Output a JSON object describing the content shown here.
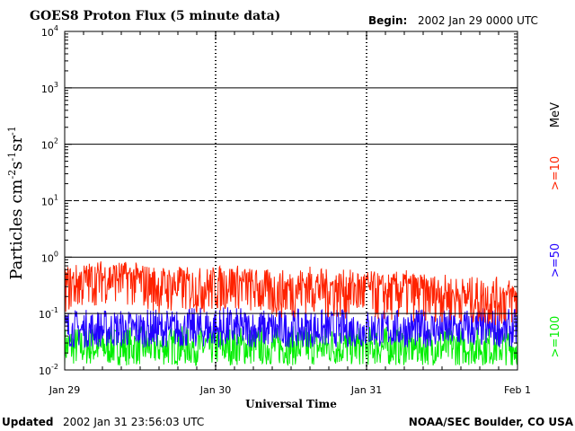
{
  "header": {
    "title": "GOES8 Proton Flux (5 minute data)",
    "begin_label": "Begin:",
    "begin_value": "2002 Jan 29 0000 UTC"
  },
  "footer": {
    "updated_label": "Updated",
    "updated_value": "2002 Jan 31 23:56:03 UTC",
    "credit": "NOAA/SEC Boulder, CO USA"
  },
  "legend": {
    "unit": "MeV",
    "items": [
      {
        "label": ">=10",
        "color": "#ff2200"
      },
      {
        "label": ">=50",
        "color": "#2200ff"
      },
      {
        "label": ">=100",
        "color": "#00ee00"
      }
    ]
  },
  "chart_data": {
    "type": "line",
    "title": "GOES8 Proton Flux (5 minute data)",
    "xlabel": "Universal Time",
    "ylabel": "Particles cm-2s-1sr-1",
    "yscale": "log",
    "ylim": [
      0.01,
      10000
    ],
    "y_tick_values": [
      0.01,
      0.1,
      1,
      10,
      100,
      1000,
      10000
    ],
    "y_tick_labels": [
      {
        "base": "10",
        "exp": "-2"
      },
      {
        "base": "10",
        "exp": "-1"
      },
      {
        "base": "10",
        "exp": "0"
      },
      {
        "base": "10",
        "exp": "1"
      },
      {
        "base": "10",
        "exp": "2"
      },
      {
        "base": "10",
        "exp": "3"
      },
      {
        "base": "10",
        "exp": "4"
      }
    ],
    "x_tick_labels": [
      "Jan 29",
      "Jan 30",
      "Jan 31",
      "Feb 1"
    ],
    "x_domain": [
      "2002-01-29",
      "2002-02-01"
    ],
    "dashed_reference_level": 10,
    "series": [
      {
        "name": ">=10 MeV",
        "color": "#ff2200",
        "x": [
          "2002-01-29T00:00",
          "2002-01-29T03:00",
          "2002-01-29T06:00",
          "2002-01-29T09:00",
          "2002-01-29T12:00",
          "2002-01-29T15:00",
          "2002-01-29T18:00",
          "2002-01-29T21:00",
          "2002-01-30T00:00",
          "2002-01-30T03:00",
          "2002-01-30T06:00",
          "2002-01-30T09:00",
          "2002-01-30T12:00",
          "2002-01-30T15:00",
          "2002-01-30T18:00",
          "2002-01-30T21:00",
          "2002-01-31T00:00",
          "2002-01-31T03:00",
          "2002-01-31T06:00",
          "2002-01-31T09:00",
          "2002-01-31T12:00",
          "2002-01-31T15:00",
          "2002-01-31T18:00",
          "2002-01-31T21:00",
          "2002-01-31T24:00"
        ],
        "y": [
          0.35,
          0.4,
          0.45,
          0.5,
          0.4,
          0.3,
          0.35,
          0.3,
          0.35,
          0.4,
          0.3,
          0.25,
          0.3,
          0.35,
          0.3,
          0.3,
          0.3,
          0.25,
          0.3,
          0.25,
          0.25,
          0.2,
          0.2,
          0.2,
          0.2
        ],
        "band_min": [
          0.1,
          0.12,
          0.15,
          0.15,
          0.12,
          0.1,
          0.1,
          0.1,
          0.1,
          0.12,
          0.1,
          0.08,
          0.08,
          0.1,
          0.08,
          0.08,
          0.08,
          0.07,
          0.07,
          0.07,
          0.07,
          0.07,
          0.06,
          0.06,
          0.06
        ],
        "band_max": [
          0.7,
          0.8,
          0.9,
          0.85,
          0.8,
          0.7,
          0.7,
          0.65,
          0.7,
          0.75,
          0.65,
          0.6,
          0.6,
          0.7,
          0.6,
          0.6,
          0.6,
          0.5,
          0.6,
          0.5,
          0.5,
          0.45,
          0.45,
          0.45,
          0.4
        ]
      },
      {
        "name": ">=50 MeV",
        "color": "#2200ff",
        "x": [
          "2002-01-29T00:00",
          "2002-01-29T06:00",
          "2002-01-29T12:00",
          "2002-01-29T18:00",
          "2002-01-30T00:00",
          "2002-01-30T06:00",
          "2002-01-30T12:00",
          "2002-01-30T18:00",
          "2002-01-31T00:00",
          "2002-01-31T06:00",
          "2002-01-31T12:00",
          "2002-01-31T18:00",
          "2002-01-31T24:00"
        ],
        "y": [
          0.05,
          0.05,
          0.05,
          0.05,
          0.05,
          0.05,
          0.05,
          0.05,
          0.05,
          0.05,
          0.05,
          0.05,
          0.05
        ],
        "band_min": [
          0.025,
          0.025,
          0.025,
          0.025,
          0.025,
          0.025,
          0.025,
          0.025,
          0.025,
          0.025,
          0.025,
          0.025,
          0.025
        ],
        "band_max": [
          0.12,
          0.12,
          0.12,
          0.12,
          0.14,
          0.12,
          0.12,
          0.12,
          0.12,
          0.12,
          0.12,
          0.13,
          0.12
        ]
      },
      {
        "name": ">=100 MeV",
        "color": "#00ee00",
        "x": [
          "2002-01-29T00:00",
          "2002-01-29T06:00",
          "2002-01-29T12:00",
          "2002-01-29T18:00",
          "2002-01-30T00:00",
          "2002-01-30T06:00",
          "2002-01-30T12:00",
          "2002-01-30T18:00",
          "2002-01-31T00:00",
          "2002-01-31T06:00",
          "2002-01-31T12:00",
          "2002-01-31T18:00",
          "2002-01-31T24:00"
        ],
        "y": [
          0.025,
          0.025,
          0.025,
          0.025,
          0.025,
          0.025,
          0.025,
          0.025,
          0.025,
          0.025,
          0.025,
          0.025,
          0.025
        ],
        "band_min": [
          0.012,
          0.012,
          0.012,
          0.012,
          0.012,
          0.012,
          0.012,
          0.012,
          0.012,
          0.012,
          0.012,
          0.012,
          0.012
        ],
        "band_max": [
          0.06,
          0.06,
          0.06,
          0.06,
          0.06,
          0.06,
          0.06,
          0.06,
          0.06,
          0.06,
          0.06,
          0.06,
          0.06
        ]
      }
    ],
    "grid": true,
    "legend_position": "right"
  }
}
